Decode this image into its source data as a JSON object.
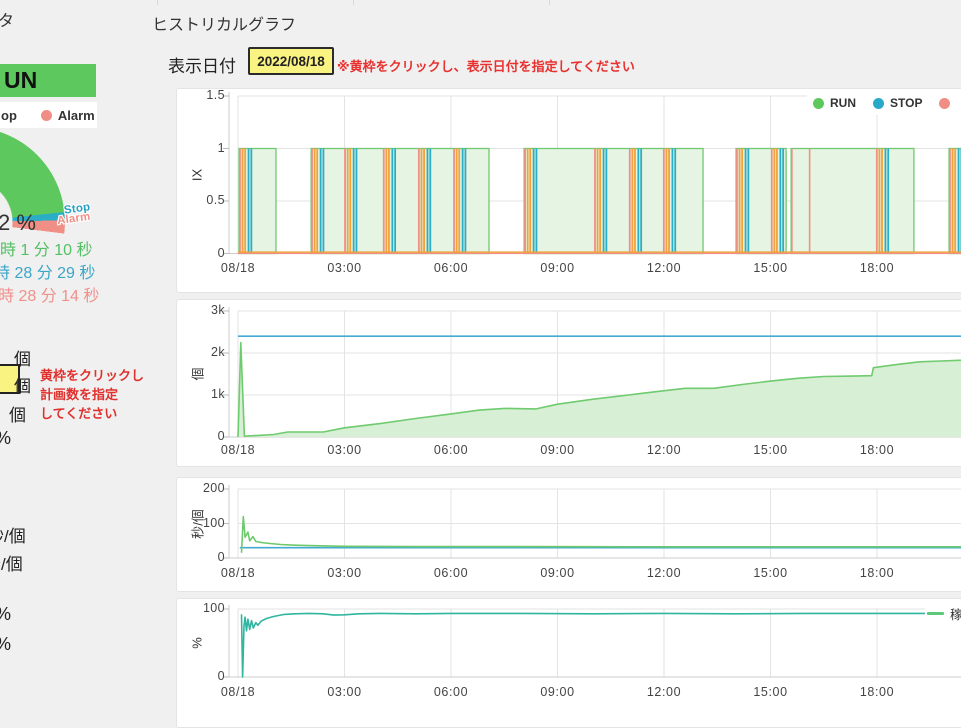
{
  "header": {
    "title": "ヒストリカルグラフ",
    "date_label": "表示日付",
    "date_value": "2022/08/18",
    "date_note": "※黄枠をクリックし、表示日付を指定してください",
    "highlight_color": "#f9f382"
  },
  "sidebar": {
    "title_fragment": "タ",
    "status_banner": {
      "label": "UN",
      "color": "#5dc85d"
    },
    "legend": {
      "stop_fragment": "op",
      "alarm_label": "Alarm",
      "alarm_color": "#f08d84"
    },
    "gauge": {
      "run_color": "#5dc85d",
      "stop_color": "#2aaec5",
      "alarm_color": "#ef8f85",
      "stop_label": "Stop",
      "alarm_label": "Alarm",
      "stop_label_color": "#27a0c4",
      "percent_fragment": "2 %"
    },
    "times": [
      {
        "text": "時 1 分 10 秒",
        "color": "#53c064"
      },
      {
        "text": "時 28 分 29 秒",
        "color": "#3ba6c6"
      },
      {
        "text": "時 28 分 14 秒",
        "color": "#f0908b"
      }
    ],
    "counts": {
      "unit1": "個",
      "unit2": "個",
      "unit3": "個",
      "percent": "%",
      "box_color": "#f9f382",
      "note_lines": [
        "黄枠をクリックし",
        "計画数を指定",
        "してください"
      ]
    },
    "rates": {
      "unit1": "秒/個",
      "unit2": "秒/個",
      "p1": "%",
      "p2": "%"
    }
  },
  "chart_data": [
    {
      "type": "area",
      "name": "run-stop-alarm-timeline",
      "ylabel": "IX",
      "ylim": [
        0,
        1.5
      ],
      "yticks": [
        {
          "v": 0,
          "label": "0"
        },
        {
          "v": 0.5,
          "label": "0.5"
        },
        {
          "v": 1,
          "label": "1"
        },
        {
          "v": 1.5,
          "label": "1.5"
        }
      ],
      "xticks": [
        {
          "h": 0,
          "label": "08/18"
        },
        {
          "h": 3,
          "label": "03:00"
        },
        {
          "h": 6,
          "label": "06:00"
        },
        {
          "h": 9,
          "label": "09:00"
        },
        {
          "h": 12,
          "label": "12:00"
        },
        {
          "h": 15,
          "label": "15:00"
        },
        {
          "h": 18,
          "label": "18:00"
        }
      ],
      "legend": [
        {
          "label": "RUN",
          "color": "#5dc85d"
        },
        {
          "label": "STOP",
          "color": "#29a9c8"
        },
        {
          "label": "",
          "color": "#f08d84"
        }
      ],
      "colors": {
        "run_fill": "#e6f4e3",
        "run_border": "#70c870",
        "stop": "#2aaec5",
        "alarm": "#ef8f85",
        "event": "#f0a23c"
      },
      "run_blocks_h": [
        [
          0.03,
          1.07
        ],
        [
          2.06,
          7.07
        ],
        [
          8.06,
          13.1
        ],
        [
          14.03,
          15.44
        ],
        [
          15.58,
          19.04
        ],
        [
          20.03,
          24
        ]
      ],
      "stop_event_clusters_h": [
        0.03,
        2.06,
        2.99,
        4.08,
        5.07,
        6.06,
        8.06,
        10.03,
        11.01,
        11.97,
        14.03,
        15.01,
        17.97,
        20.03
      ],
      "alarm_marks_h": [
        15.58,
        16.08
      ]
    },
    {
      "type": "area",
      "name": "production-count",
      "ylabel": "個",
      "ylim": [
        0,
        3000
      ],
      "yticks": [
        {
          "v": 0,
          "label": "0"
        },
        {
          "v": 1000,
          "label": "1k"
        },
        {
          "v": 2000,
          "label": "2k"
        },
        {
          "v": 3000,
          "label": "3k"
        }
      ],
      "xticks": [
        {
          "h": 0,
          "label": "08/18"
        },
        {
          "h": 3,
          "label": "03:00"
        },
        {
          "h": 6,
          "label": "06:00"
        },
        {
          "h": 9,
          "label": "09:00"
        },
        {
          "h": 12,
          "label": "12:00"
        },
        {
          "h": 15,
          "label": "15:00"
        },
        {
          "h": 18,
          "label": "18:00"
        }
      ],
      "series": [
        {
          "color": "#45aad2",
          "points": [
            [
              0,
              2400
            ],
            [
              24,
              2400
            ]
          ]
        },
        {
          "color": "#6fcb6f",
          "fill": "#d7efd4",
          "points": [
            [
              0,
              0
            ],
            [
              0.08,
              2250
            ],
            [
              0.18,
              20
            ],
            [
              1,
              60
            ],
            [
              1.4,
              120
            ],
            [
              2.4,
              120
            ],
            [
              3,
              220
            ],
            [
              4,
              320
            ],
            [
              5,
              440
            ],
            [
              6,
              550
            ],
            [
              6.8,
              640
            ],
            [
              7.5,
              680
            ],
            [
              8.4,
              670
            ],
            [
              9,
              780
            ],
            [
              10,
              900
            ],
            [
              11,
              1000
            ],
            [
              11.8,
              1080
            ],
            [
              12.6,
              1160
            ],
            [
              13.4,
              1160
            ],
            [
              14.2,
              1250
            ],
            [
              15,
              1330
            ],
            [
              15.8,
              1400
            ],
            [
              16.5,
              1440
            ],
            [
              17.3,
              1450
            ],
            [
              17.85,
              1460
            ],
            [
              17.9,
              1650
            ],
            [
              18.6,
              1730
            ],
            [
              19.2,
              1790
            ],
            [
              19.8,
              1810
            ],
            [
              20.5,
              1830
            ]
          ]
        }
      ]
    },
    {
      "type": "line",
      "name": "cycle-time",
      "ylabel": "秒/個",
      "ylim": [
        0,
        200
      ],
      "yticks": [
        {
          "v": 0,
          "label": "0"
        },
        {
          "v": 100,
          "label": "100"
        },
        {
          "v": 200,
          "label": "200"
        }
      ],
      "xticks": [
        {
          "h": 0,
          "label": "08/18"
        },
        {
          "h": 3,
          "label": "03:00"
        },
        {
          "h": 6,
          "label": "06:00"
        },
        {
          "h": 9,
          "label": "09:00"
        },
        {
          "h": 12,
          "label": "12:00"
        },
        {
          "h": 15,
          "label": "15:00"
        },
        {
          "h": 18,
          "label": "18:00"
        }
      ],
      "series": [
        {
          "color": "#45aad2",
          "points": [
            [
              0.05,
              30
            ],
            [
              24,
              30
            ]
          ]
        },
        {
          "color": "#6cc96c",
          "points": [
            [
              0.1,
              15
            ],
            [
              0.15,
              120
            ],
            [
              0.2,
              60
            ],
            [
              0.28,
              75
            ],
            [
              0.33,
              50
            ],
            [
              0.42,
              62
            ],
            [
              0.5,
              48
            ],
            [
              0.65,
              45
            ],
            [
              0.9,
              42
            ],
            [
              1.2,
              39
            ],
            [
              1.6,
              37
            ],
            [
              2,
              36
            ],
            [
              3,
              34
            ],
            [
              5,
              33
            ],
            [
              8,
              33
            ],
            [
              12,
              32.5
            ],
            [
              16,
              32.5
            ],
            [
              20.5,
              32.5
            ]
          ]
        }
      ]
    },
    {
      "type": "line",
      "name": "availability-rate",
      "ylabel": "%",
      "ylim": [
        0,
        100
      ],
      "yticks": [
        {
          "v": 0,
          "label": "0"
        },
        {
          "v": 100,
          "label": "100"
        }
      ],
      "xticks": [
        {
          "h": 0,
          "label": "08/18"
        },
        {
          "h": 3,
          "label": "03:00"
        },
        {
          "h": 6,
          "label": "06:00"
        },
        {
          "h": 9,
          "label": "09:00"
        },
        {
          "h": 12,
          "label": "12:00"
        },
        {
          "h": 15,
          "label": "15:00"
        },
        {
          "h": 18,
          "label": "18:00"
        }
      ],
      "legend": [
        {
          "label": "稼",
          "color": "#5ec87f"
        }
      ],
      "series": [
        {
          "color": "#2fb5a0",
          "points": [
            [
              0.1,
              92
            ],
            [
              0.13,
              0
            ],
            [
              0.17,
              75
            ],
            [
              0.2,
              88
            ],
            [
              0.24,
              68
            ],
            [
              0.28,
              85
            ],
            [
              0.33,
              70
            ],
            [
              0.38,
              83
            ],
            [
              0.43,
              72
            ],
            [
              0.5,
              80
            ],
            [
              0.56,
              76
            ],
            [
              0.65,
              82
            ],
            [
              0.8,
              86
            ],
            [
              1,
              89
            ],
            [
              1.3,
              92
            ],
            [
              1.6,
              93
            ],
            [
              2,
              93.5
            ],
            [
              2.4,
              93
            ],
            [
              2.7,
              91
            ],
            [
              3,
              91.5
            ],
            [
              3.4,
              93
            ],
            [
              4,
              93.5
            ],
            [
              5,
              93
            ],
            [
              6,
              93.5
            ],
            [
              8,
              93.5
            ],
            [
              10,
              93
            ],
            [
              12,
              93.5
            ],
            [
              14,
              93
            ],
            [
              16,
              93.5
            ],
            [
              18,
              93.5
            ],
            [
              20.5,
              93.5
            ]
          ]
        }
      ]
    }
  ]
}
